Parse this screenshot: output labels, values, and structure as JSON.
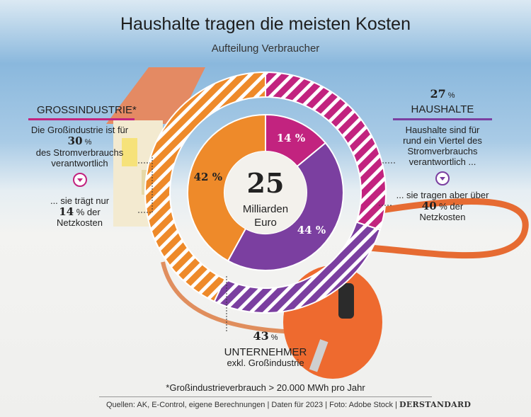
{
  "title": "Haushalte tragen die meisten Kosten",
  "subtitle": "Aufteilung Verbraucher",
  "center": {
    "value": "25",
    "line1": "Milliarden",
    "line2": "Euro"
  },
  "left": {
    "heading": "GROSSINDUSTRIE*",
    "line1": "Die Großindustrie ist für",
    "pct1_num": "30",
    "pct1_sign": " %",
    "line3": "des Stromverbrauchs",
    "line4": "verantwortlich",
    "line5": "... sie trägt nur",
    "pct2_num": "14",
    "pct2_rest": " % der",
    "line7": "Netzkosten",
    "icon": "chevron-down-icon"
  },
  "right": {
    "pct_num": "27",
    "pct_sign": " %",
    "heading": "HAUSHALTE",
    "line1": "Haushalte sind für",
    "line2": "rund ein Viertel des",
    "line3": "Stromverbrauchs",
    "line4": "verantwortlich ...",
    "line5": "... sie tragen aber über",
    "pct2_num": "40",
    "pct2_rest": " % der",
    "line7": "Netzkosten",
    "icon": "chevron-down-icon"
  },
  "bottom": {
    "pct_num": "43",
    "pct_sign": " %",
    "heading": "UNTERNEHMER",
    "sub": "exkl. Großindustrie"
  },
  "footnote": "*Großindustrieverbrauch > 20.000 MWh pro Jahr",
  "source": "Quellen: AK, E-Control, eigene Berechnungen | Daten für 2023 | Foto: Adobe Stock |",
  "brand": "DERSTANDARD",
  "colors": {
    "grossindustrie": "#c2237f",
    "haushalte": "#7b3fa0",
    "unternehmer": "#ee8a2a"
  },
  "chart_data": {
    "type": "pie",
    "title": "Haushalte tragen die meisten Kosten",
    "subtitle": "Aufteilung Verbraucher",
    "center_label": "25 Milliarden Euro",
    "rings": [
      {
        "name": "Stromverbrauch",
        "categories": [
          "Großindustrie",
          "Haushalte",
          "Unternehmer"
        ],
        "values": [
          30,
          27,
          43
        ],
        "labels": [
          "30 %",
          "27 %",
          "43 %"
        ]
      },
      {
        "name": "Netzkosten",
        "categories": [
          "Großindustrie",
          "Haushalte",
          "Unternehmer"
        ],
        "values": [
          14,
          44,
          42
        ],
        "labels": [
          "14 %",
          "44 %",
          "42 %"
        ]
      }
    ]
  }
}
